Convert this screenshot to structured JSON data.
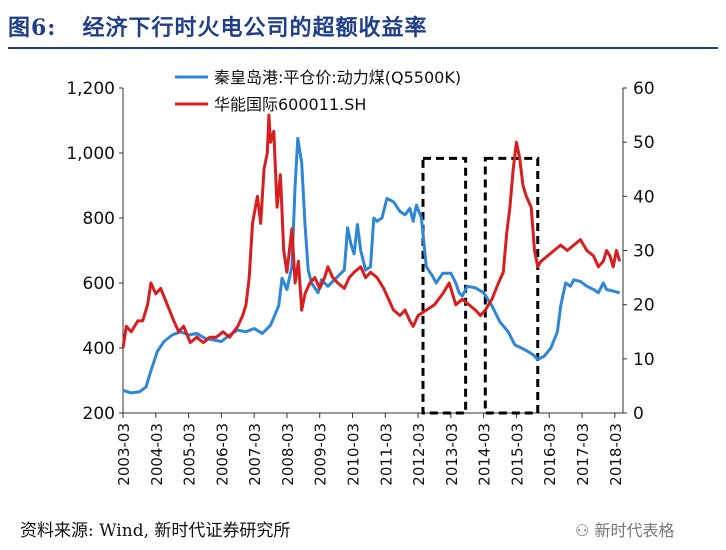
{
  "title": {
    "figure": "图6:",
    "text": "经济下行时火电公司的超额收益率"
  },
  "source": "资料来源: Wind, 新时代证券研究所",
  "watermark": "新时代表格",
  "chart_data": {
    "type": "line",
    "x_tick_labels": [
      "2003-03",
      "2004-03",
      "2005-03",
      "2006-03",
      "2007-03",
      "2008-03",
      "2009-03",
      "2010-03",
      "2011-03",
      "2012-03",
      "2013-03",
      "2014-03",
      "2015-03",
      "2016-03",
      "2017-03",
      "2018-03"
    ],
    "xlim": [
      2003.25,
      2018.5
    ],
    "y_left": {
      "ylim": [
        200,
        1200
      ],
      "ticks": [
        200,
        400,
        600,
        800,
        1000,
        1200
      ],
      "tick_labels": [
        "200",
        "400",
        "600",
        "800",
        "1,000",
        "1,200"
      ]
    },
    "y_right": {
      "ylim": [
        0,
        60
      ],
      "ticks": [
        0,
        10,
        20,
        30,
        40,
        50,
        60
      ],
      "tick_labels": [
        "0",
        "10",
        "20",
        "30",
        "40",
        "50",
        "60"
      ]
    },
    "legend": "top-center",
    "grid": false,
    "series": [
      {
        "name": "秦皇岛港:平仓价:动力煤(Q5500K)",
        "axis": "left",
        "color": "#2e86d6",
        "points": [
          [
            2003.25,
            270
          ],
          [
            2003.5,
            262
          ],
          [
            2003.75,
            265
          ],
          [
            2003.95,
            280
          ],
          [
            2004.1,
            330
          ],
          [
            2004.3,
            390
          ],
          [
            2004.5,
            420
          ],
          [
            2004.75,
            440
          ],
          [
            2005.0,
            450
          ],
          [
            2005.25,
            440
          ],
          [
            2005.5,
            445
          ],
          [
            2005.75,
            430
          ],
          [
            2006.0,
            425
          ],
          [
            2006.25,
            420
          ],
          [
            2006.5,
            440
          ],
          [
            2006.75,
            455
          ],
          [
            2007.0,
            450
          ],
          [
            2007.25,
            460
          ],
          [
            2007.5,
            445
          ],
          [
            2007.75,
            470
          ],
          [
            2008.0,
            530
          ],
          [
            2008.1,
            615
          ],
          [
            2008.25,
            580
          ],
          [
            2008.4,
            650
          ],
          [
            2008.5,
            900
          ],
          [
            2008.58,
            1045
          ],
          [
            2008.7,
            970
          ],
          [
            2008.8,
            780
          ],
          [
            2008.9,
            640
          ],
          [
            2009.0,
            600
          ],
          [
            2009.2,
            570
          ],
          [
            2009.3,
            610
          ],
          [
            2009.5,
            590
          ],
          [
            2009.75,
            615
          ],
          [
            2010.0,
            640
          ],
          [
            2010.1,
            770
          ],
          [
            2010.2,
            720
          ],
          [
            2010.3,
            690
          ],
          [
            2010.4,
            780
          ],
          [
            2010.5,
            700
          ],
          [
            2010.65,
            640
          ],
          [
            2010.8,
            650
          ],
          [
            2010.9,
            800
          ],
          [
            2011.0,
            790
          ],
          [
            2011.15,
            800
          ],
          [
            2011.3,
            860
          ],
          [
            2011.5,
            850
          ],
          [
            2011.7,
            820
          ],
          [
            2011.85,
            810
          ],
          [
            2012.0,
            830
          ],
          [
            2012.1,
            790
          ],
          [
            2012.2,
            840
          ],
          [
            2012.35,
            800
          ],
          [
            2012.5,
            650
          ],
          [
            2012.7,
            620
          ],
          [
            2012.8,
            600
          ],
          [
            2013.0,
            630
          ],
          [
            2013.25,
            630
          ],
          [
            2013.4,
            600
          ],
          [
            2013.5,
            570
          ],
          [
            2013.6,
            560
          ],
          [
            2013.75,
            590
          ],
          [
            2014.0,
            585
          ],
          [
            2014.25,
            570
          ],
          [
            2014.5,
            530
          ],
          [
            2014.75,
            480
          ],
          [
            2015.0,
            450
          ],
          [
            2015.2,
            410
          ],
          [
            2015.5,
            395
          ],
          [
            2015.75,
            380
          ],
          [
            2015.9,
            365
          ],
          [
            2016.1,
            375
          ],
          [
            2016.3,
            400
          ],
          [
            2016.5,
            450
          ],
          [
            2016.6,
            530
          ],
          [
            2016.75,
            600
          ],
          [
            2016.9,
            590
          ],
          [
            2017.0,
            610
          ],
          [
            2017.2,
            605
          ],
          [
            2017.4,
            590
          ],
          [
            2017.6,
            580
          ],
          [
            2017.75,
            570
          ],
          [
            2017.9,
            600
          ],
          [
            2018.0,
            580
          ],
          [
            2018.2,
            575
          ],
          [
            2018.4,
            570
          ]
        ]
      },
      {
        "name": "华能国际600011.SH",
        "axis": "right",
        "color": "#d81e1e",
        "points": [
          [
            2003.25,
            12
          ],
          [
            2003.35,
            16
          ],
          [
            2003.5,
            15
          ],
          [
            2003.7,
            17
          ],
          [
            2003.85,
            17
          ],
          [
            2004.0,
            20
          ],
          [
            2004.1,
            24
          ],
          [
            2004.25,
            22
          ],
          [
            2004.4,
            23
          ],
          [
            2004.6,
            20
          ],
          [
            2004.8,
            17
          ],
          [
            2004.95,
            15
          ],
          [
            2005.1,
            16
          ],
          [
            2005.3,
            13
          ],
          [
            2005.5,
            14
          ],
          [
            2005.7,
            13
          ],
          [
            2005.9,
            14
          ],
          [
            2006.1,
            14
          ],
          [
            2006.3,
            15
          ],
          [
            2006.5,
            14
          ],
          [
            2006.75,
            16
          ],
          [
            2006.9,
            18
          ],
          [
            2007.0,
            20
          ],
          [
            2007.1,
            25
          ],
          [
            2007.2,
            35
          ],
          [
            2007.35,
            40
          ],
          [
            2007.45,
            35
          ],
          [
            2007.55,
            45
          ],
          [
            2007.65,
            48
          ],
          [
            2007.7,
            55
          ],
          [
            2007.75,
            50
          ],
          [
            2007.85,
            52
          ],
          [
            2007.95,
            38
          ],
          [
            2008.05,
            44
          ],
          [
            2008.15,
            30
          ],
          [
            2008.25,
            26
          ],
          [
            2008.4,
            34
          ],
          [
            2008.5,
            24
          ],
          [
            2008.6,
            28
          ],
          [
            2008.7,
            19
          ],
          [
            2008.8,
            22
          ],
          [
            2008.95,
            24
          ],
          [
            2009.1,
            25
          ],
          [
            2009.25,
            23
          ],
          [
            2009.4,
            25
          ],
          [
            2009.5,
            27
          ],
          [
            2009.65,
            25
          ],
          [
            2009.8,
            24
          ],
          [
            2010.0,
            23
          ],
          [
            2010.15,
            25
          ],
          [
            2010.3,
            26
          ],
          [
            2010.5,
            27
          ],
          [
            2010.65,
            25
          ],
          [
            2010.8,
            26
          ],
          [
            2011.0,
            25
          ],
          [
            2011.2,
            23
          ],
          [
            2011.35,
            21
          ],
          [
            2011.5,
            19
          ],
          [
            2011.7,
            18
          ],
          [
            2011.85,
            19
          ],
          [
            2012.0,
            17
          ],
          [
            2012.1,
            16
          ],
          [
            2012.25,
            18
          ],
          [
            2012.5,
            19
          ],
          [
            2012.75,
            20
          ],
          [
            2013.0,
            22
          ],
          [
            2013.2,
            24
          ],
          [
            2013.3,
            22
          ],
          [
            2013.4,
            20
          ],
          [
            2013.6,
            21
          ],
          [
            2013.8,
            20
          ],
          [
            2014.0,
            19
          ],
          [
            2014.15,
            18
          ],
          [
            2014.3,
            19
          ],
          [
            2014.5,
            21
          ],
          [
            2014.7,
            24
          ],
          [
            2014.85,
            26
          ],
          [
            2014.95,
            33
          ],
          [
            2015.05,
            38
          ],
          [
            2015.15,
            45
          ],
          [
            2015.25,
            50
          ],
          [
            2015.35,
            47
          ],
          [
            2015.45,
            42
          ],
          [
            2015.55,
            40
          ],
          [
            2015.7,
            38
          ],
          [
            2015.8,
            30
          ],
          [
            2015.9,
            27
          ],
          [
            2016.0,
            28
          ],
          [
            2016.2,
            29
          ],
          [
            2016.4,
            30
          ],
          [
            2016.6,
            31
          ],
          [
            2016.8,
            30
          ],
          [
            2017.0,
            31
          ],
          [
            2017.2,
            32
          ],
          [
            2017.4,
            30
          ],
          [
            2017.6,
            29
          ],
          [
            2017.75,
            27
          ],
          [
            2017.9,
            28
          ],
          [
            2018.0,
            30
          ],
          [
            2018.1,
            29
          ],
          [
            2018.2,
            27
          ],
          [
            2018.3,
            30
          ],
          [
            2018.4,
            28
          ]
        ]
      }
    ],
    "highlight_boxes": [
      {
        "x_from": 2012.4,
        "x_to": 2013.7,
        "y_from": 0,
        "y_to": 47
      },
      {
        "x_from": 2014.3,
        "x_to": 2015.9,
        "y_from": 0,
        "y_to": 47
      }
    ]
  }
}
